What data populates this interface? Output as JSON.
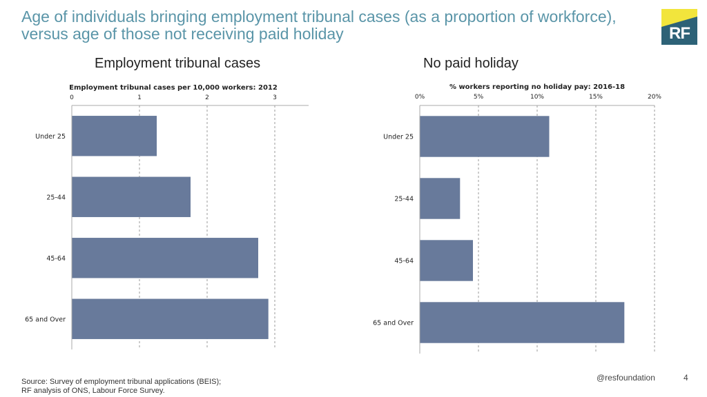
{
  "title": {
    "line1": "Age of individuals bringing employment tribunal cases (as a proportion of workforce),",
    "line2": "versus age of those not receiving paid holiday"
  },
  "logo": {
    "text": "RF",
    "accent_color": "#f2e53c",
    "bg_color": "#2d6277"
  },
  "headings": {
    "left": "Employment tribunal cases",
    "right": "No paid holiday"
  },
  "colors": {
    "bar": "#687a9b",
    "title": "#5a95a8",
    "grid": "#999999"
  },
  "chart_data": [
    {
      "type": "bar",
      "orientation": "horizontal",
      "title": "Employment tribunal cases per 10,000 workers: 2012",
      "categories": [
        "Under 25",
        "25-44",
        "45-64",
        "65 and Over"
      ],
      "values": [
        1.25,
        1.75,
        2.75,
        2.9
      ],
      "xlim": [
        0,
        3
      ],
      "ticks": [
        0,
        1,
        2,
        3
      ],
      "tick_labels": [
        "0",
        "1",
        "2",
        "3"
      ],
      "grid": "dashed vertical",
      "axis_position": "top"
    },
    {
      "type": "bar",
      "orientation": "horizontal",
      "title": "% workers reporting no holiday pay: 2016-18",
      "categories": [
        "Under 25",
        "25-44",
        "45-64",
        "65 and Over"
      ],
      "values": [
        11.0,
        3.4,
        4.5,
        17.4
      ],
      "xlim": [
        0,
        20
      ],
      "ticks": [
        0,
        5,
        10,
        15,
        20
      ],
      "tick_labels": [
        "0%",
        "5%",
        "10%",
        "15%",
        "20%"
      ],
      "grid": "dashed vertical",
      "axis_position": "top"
    }
  ],
  "footer": {
    "source_line1": "Source: Survey of employment tribunal applications (BEIS);",
    "source_line2": "RF analysis of ONS, Labour Force Survey.",
    "handle": "@resfoundation",
    "page_number": "4"
  }
}
